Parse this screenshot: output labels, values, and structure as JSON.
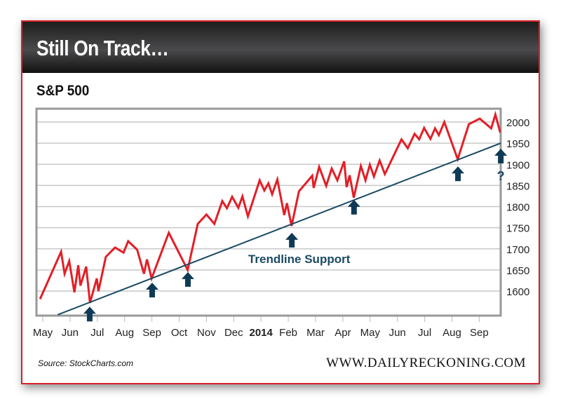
{
  "header": {
    "title": "Still On Track…"
  },
  "chart_data": {
    "type": "line",
    "title": "S&P 500",
    "x_unit": "months since May 2013",
    "xlabel": "",
    "ylabel": "",
    "ylim": [
      1550,
      2030
    ],
    "yticks": [
      1600,
      1650,
      1700,
      1750,
      1800,
      1850,
      1900,
      1950,
      2000
    ],
    "ytick_labels": [
      "1600",
      "1650",
      "1700",
      "1750",
      "1800",
      "1850",
      "1900",
      "1950",
      "2000"
    ],
    "xticks": [
      0,
      1,
      2,
      3,
      4,
      5,
      6,
      7,
      8,
      9,
      10,
      11,
      12,
      13,
      14,
      15,
      16
    ],
    "xtick_labels": [
      "May",
      "Jun",
      "Jul",
      "Aug",
      "Sep",
      "Oct",
      "Nov",
      "Dec",
      "2014",
      "Feb",
      "Mar",
      "Apr",
      "May",
      "Jun",
      "Jul",
      "Aug",
      "Sep"
    ],
    "grid": true,
    "series": [
      {
        "name": "S&P 500",
        "color": "#e31e26",
        "x": [
          -0.1,
          0.67,
          0.8,
          0.97,
          1.16,
          1.3,
          1.38,
          1.59,
          1.73,
          1.98,
          2.04,
          2.31,
          2.65,
          2.96,
          3.13,
          3.46,
          3.71,
          3.82,
          3.99,
          4.62,
          5.31,
          5.68,
          6.0,
          6.29,
          6.58,
          6.75,
          6.94,
          7.17,
          7.32,
          7.52,
          7.95,
          8.12,
          8.27,
          8.41,
          8.6,
          8.85,
          8.95,
          9.12,
          9.39,
          9.88,
          9.93,
          10.13,
          10.39,
          10.59,
          10.8,
          11.05,
          11.14,
          11.25,
          11.4,
          11.66,
          11.83,
          11.99,
          12.14,
          12.35,
          12.54,
          13.15,
          13.38,
          13.63,
          13.8,
          13.98,
          14.21,
          14.38,
          14.52,
          14.72,
          15.21,
          15.62,
          16.02,
          16.44,
          16.59,
          16.77
        ],
        "values": [
          1581,
          1693,
          1641,
          1671,
          1597,
          1661,
          1613,
          1658,
          1572,
          1630,
          1600,
          1681,
          1703,
          1691,
          1718,
          1698,
          1641,
          1675,
          1630,
          1738,
          1650,
          1759,
          1781,
          1759,
          1813,
          1796,
          1823,
          1797,
          1824,
          1777,
          1862,
          1838,
          1855,
          1829,
          1864,
          1780,
          1808,
          1754,
          1836,
          1873,
          1844,
          1894,
          1849,
          1890,
          1862,
          1907,
          1846,
          1874,
          1821,
          1896,
          1862,
          1899,
          1871,
          1909,
          1877,
          1959,
          1938,
          1972,
          1959,
          1986,
          1960,
          1985,
          1969,
          2000,
          1912,
          1995,
          2008,
          1985,
          2018,
          1975
        ]
      },
      {
        "name": "Trendline",
        "color": "#1b4a63",
        "x": [
          0.55,
          16.79
        ],
        "values": [
          1544,
          1950
        ]
      }
    ],
    "annotations": [
      {
        "text": "Trendline Support",
        "x": 9.4,
        "y": 1666,
        "color": "#1b4a63"
      },
      {
        "text": "?",
        "x": 16.79,
        "y": 1862,
        "color": "#1b4a63"
      }
    ],
    "support_arrows": {
      "color": "#0f3a55",
      "x": [
        1.72,
        4.01,
        5.32,
        9.13,
        11.41,
        15.22,
        16.79
      ],
      "tip_values": [
        1563,
        1620,
        1645,
        1738,
        1816,
        1895,
        1937
      ]
    }
  },
  "footer": {
    "source": "Source: StockCharts.com",
    "site": "WWW.DAILYRECKONING.COM"
  }
}
